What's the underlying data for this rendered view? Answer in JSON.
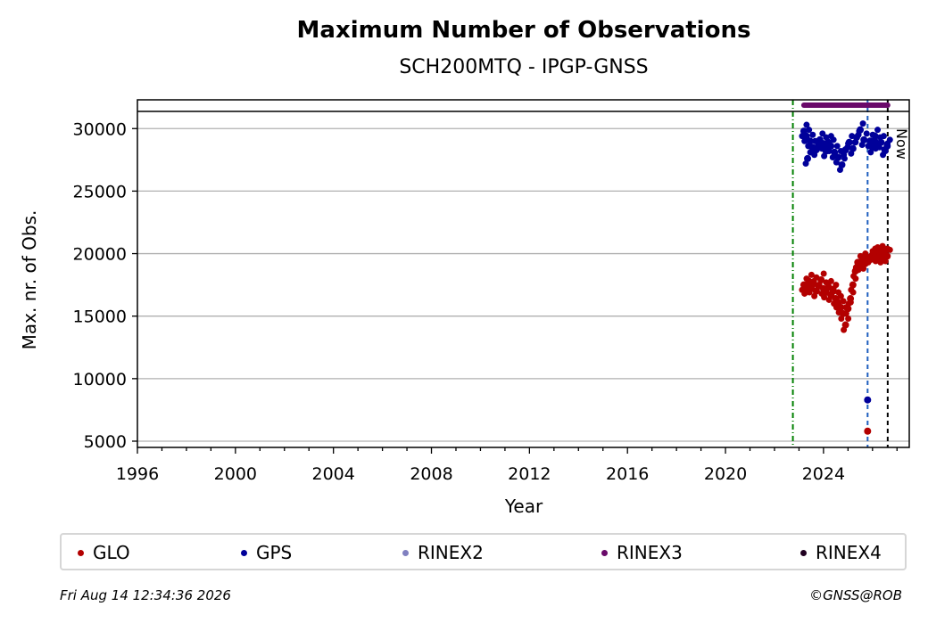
{
  "chart_data": {
    "type": "scatter",
    "title": "Maximum Number of Observations",
    "subtitle": "SCH200MTQ - IPGP-GNSS",
    "xlabel": "Year",
    "ylabel": "Max. nr. of Obs.",
    "xlim": [
      1996,
      2027.5
    ],
    "ylim": [
      4500,
      32300
    ],
    "x_ticks": [
      1996,
      2000,
      2004,
      2008,
      2012,
      2016,
      2020,
      2024
    ],
    "y_ticks": [
      5000,
      10000,
      15000,
      20000,
      25000,
      30000
    ],
    "grid": "horizontal",
    "vertical_lines": [
      {
        "x": 2022.75,
        "color": "#008000",
        "style": "dashdot"
      },
      {
        "x": 2025.8,
        "color": "#1f5fbf",
        "style": "dashed"
      },
      {
        "x": 2026.62,
        "color": "#000000",
        "style": "dashed",
        "label": "Now"
      }
    ],
    "rinex3_bar": {
      "x_start": 2023.2,
      "x_end": 2026.62,
      "y": 31800,
      "color": "#6a0a6a"
    },
    "series": [
      {
        "name": "GLO",
        "color": "#b30000",
        "points": [
          [
            2023.2,
            17500
          ],
          [
            2023.3,
            17200
          ],
          [
            2023.4,
            17800
          ],
          [
            2023.5,
            17300
          ],
          [
            2023.6,
            17600
          ],
          [
            2023.7,
            17000
          ],
          [
            2023.8,
            17400
          ],
          [
            2023.9,
            17900
          ],
          [
            2024.0,
            17200
          ],
          [
            2024.1,
            16900
          ],
          [
            2024.2,
            17300
          ],
          [
            2024.3,
            16700
          ],
          [
            2024.4,
            17000
          ],
          [
            2024.5,
            16400
          ],
          [
            2024.6,
            16100
          ],
          [
            2024.7,
            15700
          ],
          [
            2024.8,
            15200
          ],
          [
            2024.9,
            14300
          ],
          [
            2025.0,
            15600
          ],
          [
            2025.1,
            16400
          ],
          [
            2025.2,
            17500
          ],
          [
            2025.3,
            18600
          ],
          [
            2025.4,
            19300
          ],
          [
            2025.5,
            19100
          ],
          [
            2025.6,
            19500
          ],
          [
            2025.7,
            19200
          ],
          [
            2025.8,
            5800
          ],
          [
            2025.9,
            19700
          ],
          [
            2026.0,
            19900
          ],
          [
            2026.1,
            20000
          ],
          [
            2026.2,
            19800
          ],
          [
            2026.3,
            20100
          ],
          [
            2026.4,
            19700
          ],
          [
            2026.5,
            19900
          ],
          [
            2026.6,
            19800
          ]
        ]
      },
      {
        "name": "GPS",
        "color": "#00009a",
        "points": [
          [
            2023.2,
            29800
          ],
          [
            2023.3,
            29400
          ],
          [
            2023.35,
            27600
          ],
          [
            2023.45,
            29000
          ],
          [
            2023.55,
            28500
          ],
          [
            2023.7,
            28300
          ],
          [
            2023.85,
            29100
          ],
          [
            2024.0,
            28800
          ],
          [
            2024.1,
            28200
          ],
          [
            2024.2,
            28900
          ],
          [
            2024.3,
            28600
          ],
          [
            2024.45,
            28100
          ],
          [
            2024.6,
            27700
          ],
          [
            2024.75,
            27100
          ],
          [
            2024.9,
            28300
          ],
          [
            2025.05,
            28900
          ],
          [
            2025.2,
            28400
          ],
          [
            2025.35,
            29300
          ],
          [
            2025.5,
            29900
          ],
          [
            2025.65,
            29100
          ],
          [
            2025.8,
            8300
          ],
          [
            2025.9,
            29000
          ],
          [
            2026.0,
            28500
          ],
          [
            2026.1,
            29400
          ],
          [
            2026.2,
            28800
          ],
          [
            2026.35,
            28900
          ],
          [
            2026.5,
            28300
          ],
          [
            2026.6,
            28600
          ]
        ]
      },
      {
        "name": "RINEX2",
        "color": "#8080c0",
        "points": []
      },
      {
        "name": "RINEX3",
        "color": "#6a0a6a",
        "points": []
      },
      {
        "name": "RINEX4",
        "color": "#200020",
        "points": []
      }
    ]
  },
  "footer": {
    "timestamp": "Fri Aug 14 12:34:36 2026",
    "copyright": "©GNSS@ROB"
  }
}
